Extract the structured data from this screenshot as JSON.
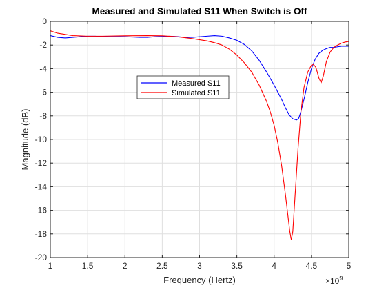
{
  "chart_data": {
    "type": "line",
    "title": "Measured and Simulated S11 When Switch is Off",
    "xlabel": "Frequency (Hertz)",
    "ylabel": "Magnitude (dB)",
    "x_exponent_base": "×10",
    "x_exponent_power": "9",
    "xlim": [
      1,
      5
    ],
    "ylim": [
      -20,
      0
    ],
    "x_ticks": [
      1,
      1.5,
      2,
      2.5,
      3,
      3.5,
      4,
      4.5,
      5
    ],
    "x_tick_labels": [
      "1",
      "1.5",
      "2",
      "2.5",
      "3",
      "3.5",
      "4",
      "4.5",
      "5"
    ],
    "y_ticks": [
      0,
      -2,
      -4,
      -6,
      -8,
      -10,
      -12,
      -14,
      -16,
      -18,
      -20
    ],
    "y_tick_labels": [
      "0",
      "-2",
      "-4",
      "-6",
      "-8",
      "-10",
      "-12",
      "-14",
      "-16",
      "-18",
      "-20"
    ],
    "grid": true,
    "legend_placement": "upper-center",
    "series": [
      {
        "name": "Measured S11",
        "color": "#0000ff",
        "x": [
          1.0,
          1.1,
          1.2,
          1.3,
          1.4,
          1.5,
          1.6,
          1.7,
          1.8,
          1.9,
          2.0,
          2.1,
          2.2,
          2.3,
          2.4,
          2.5,
          2.6,
          2.7,
          2.8,
          2.9,
          3.0,
          3.1,
          3.2,
          3.3,
          3.4,
          3.5,
          3.6,
          3.7,
          3.8,
          3.9,
          4.0,
          4.1,
          4.15,
          4.2,
          4.25,
          4.3,
          4.33,
          4.36,
          4.4,
          4.45,
          4.5,
          4.55,
          4.6,
          4.65,
          4.7,
          4.75,
          4.8,
          4.85,
          4.9,
          4.95,
          5.0
        ],
        "y": [
          -1.2,
          -1.35,
          -1.4,
          -1.35,
          -1.3,
          -1.25,
          -1.25,
          -1.28,
          -1.3,
          -1.3,
          -1.3,
          -1.32,
          -1.35,
          -1.35,
          -1.3,
          -1.28,
          -1.25,
          -1.28,
          -1.35,
          -1.35,
          -1.3,
          -1.25,
          -1.2,
          -1.25,
          -1.4,
          -1.6,
          -1.95,
          -2.5,
          -3.3,
          -4.3,
          -5.4,
          -6.6,
          -7.3,
          -7.9,
          -8.25,
          -8.35,
          -8.2,
          -7.6,
          -6.6,
          -5.2,
          -4.0,
          -3.2,
          -2.7,
          -2.45,
          -2.3,
          -2.2,
          -2.2,
          -2.15,
          -2.1,
          -2.1,
          -2.1
        ]
      },
      {
        "name": "Simulated S11",
        "color": "#ff0000",
        "x": [
          1.0,
          1.1,
          1.2,
          1.3,
          1.5,
          1.7,
          2.0,
          2.3,
          2.5,
          2.7,
          2.9,
          3.1,
          3.2,
          3.3,
          3.4,
          3.5,
          3.6,
          3.7,
          3.8,
          3.9,
          3.95,
          4.0,
          4.05,
          4.1,
          4.15,
          4.18,
          4.21,
          4.23,
          4.25,
          4.28,
          4.32,
          4.36,
          4.4,
          4.45,
          4.5,
          4.53,
          4.56,
          4.6,
          4.63,
          4.66,
          4.7,
          4.75,
          4.8,
          4.85,
          4.9,
          4.95,
          5.0
        ],
        "y": [
          -0.8,
          -1.0,
          -1.1,
          -1.2,
          -1.25,
          -1.25,
          -1.22,
          -1.2,
          -1.22,
          -1.3,
          -1.45,
          -1.65,
          -1.8,
          -2.0,
          -2.35,
          -2.85,
          -3.5,
          -4.3,
          -5.4,
          -6.8,
          -7.7,
          -8.8,
          -10.3,
          -12.2,
          -14.6,
          -16.2,
          -17.8,
          -18.5,
          -17.8,
          -14.8,
          -10.8,
          -7.6,
          -5.6,
          -4.3,
          -3.7,
          -3.65,
          -3.9,
          -4.8,
          -5.2,
          -4.6,
          -3.4,
          -2.6,
          -2.2,
          -2.0,
          -1.85,
          -1.75,
          -1.7
        ]
      }
    ]
  }
}
